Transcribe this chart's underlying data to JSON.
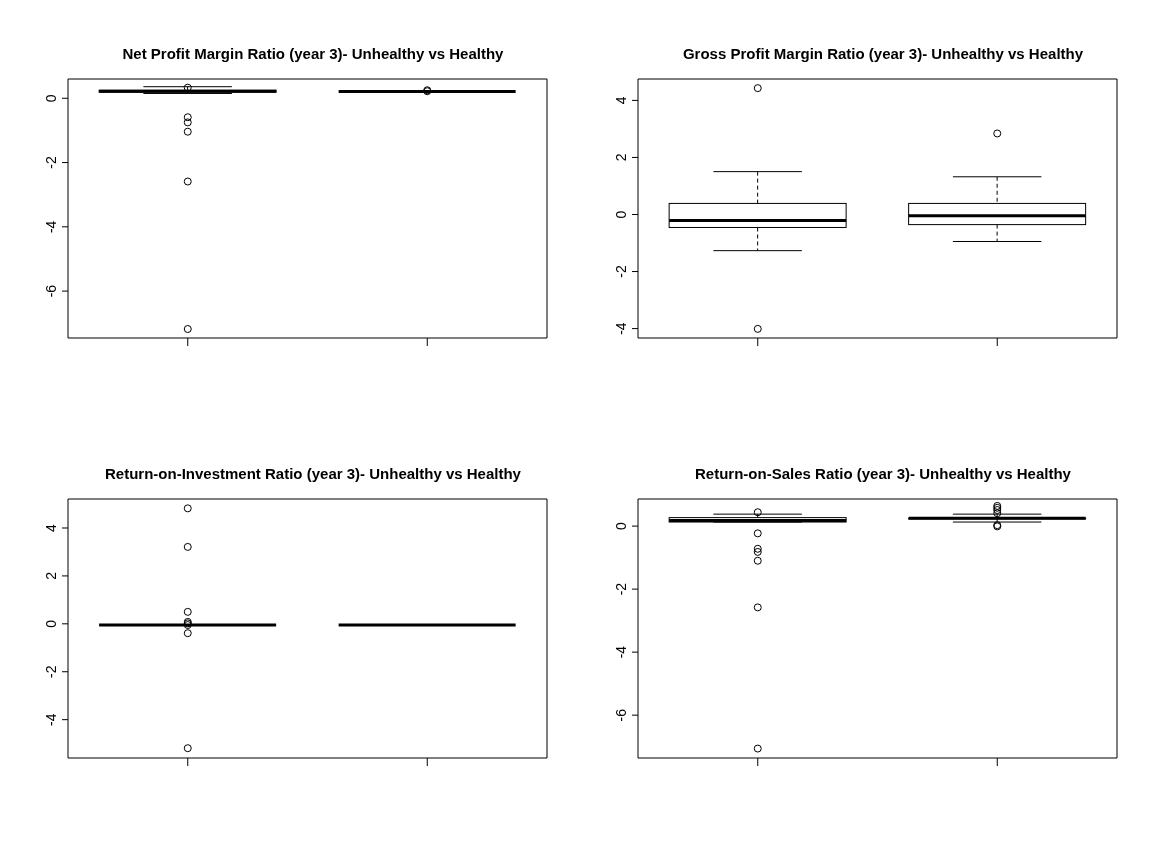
{
  "chart_data": [
    {
      "type": "box",
      "title": "Net Profit Margin Ratio (year 3)- Unhealthy vs Healthy",
      "categories": [
        null,
        null
      ],
      "ylim": [
        -7.46,
        0.6
      ],
      "yticks": [
        -6,
        -4,
        -2,
        0
      ],
      "boxes": [
        {
          "low": 0.12,
          "q1": 0.16,
          "median": 0.19,
          "q3": 0.22,
          "high": 0.33,
          "outliers": [
            0.33,
            -0.59,
            -0.75,
            -1.04,
            -2.59,
            -7.18
          ]
        },
        {
          "low": 0.18,
          "q1": 0.18,
          "median": 0.18,
          "q3": 0.18,
          "high": 0.18,
          "outliers": [
            0.22,
            0.25
          ]
        }
      ]
    },
    {
      "type": "box",
      "title": "Gross Profit Margin Ratio (year 3)- Unhealthy vs Healthy",
      "categories": [
        null,
        null
      ],
      "ylim": [
        -4.33,
        4.75
      ],
      "yticks": [
        -4,
        -2,
        0,
        2,
        4
      ],
      "boxes": [
        {
          "low": -1.28,
          "q1": -0.47,
          "median": -0.23,
          "q3": 0.37,
          "high": 1.48,
          "outliers": [
            4.43,
            -4.01
          ]
        },
        {
          "low": -0.96,
          "q1": -0.37,
          "median": -0.06,
          "q3": 0.37,
          "high": 1.3,
          "outliers": [
            2.84
          ]
        }
      ]
    },
    {
      "type": "box",
      "title": "Return-on-Investment Ratio (year 3)- Unhealthy vs Healthy",
      "categories": [
        null,
        null
      ],
      "ylim": [
        -5.6,
        5.21
      ],
      "yticks": [
        -4,
        -2,
        0,
        2,
        4
      ],
      "boxes": [
        {
          "low": -0.07,
          "q1": -0.07,
          "median": -0.07,
          "q3": -0.07,
          "high": -0.07,
          "outliers": [
            4.82,
            3.21,
            0.5,
            0.08,
            0.02,
            -0.05,
            -0.39,
            -5.19
          ]
        },
        {
          "low": -0.07,
          "q1": -0.07,
          "median": -0.07,
          "q3": -0.07,
          "high": -0.07
        }
      ]
    },
    {
      "type": "box",
      "title": "Return-on-Sales Ratio (year 3)- Unhealthy vs Healthy",
      "categories": [
        null,
        null
      ],
      "ylim": [
        -7.36,
        0.86
      ],
      "yticks": [
        -6,
        -4,
        -2,
        0
      ],
      "boxes": [
        {
          "low": 0.1,
          "q1": 0.1,
          "median": 0.15,
          "q3": 0.24,
          "high": 0.35,
          "outliers": [
            0.44,
            -0.23,
            -0.72,
            -0.82,
            -1.1,
            -2.58,
            -7.06
          ]
        },
        {
          "low": 0.1,
          "q1": 0.2,
          "median": 0.22,
          "q3": 0.22,
          "high": 0.35,
          "outliers": [
            0.64,
            0.58,
            0.51,
            0.41,
            0.03,
            -0.01
          ]
        }
      ]
    }
  ]
}
